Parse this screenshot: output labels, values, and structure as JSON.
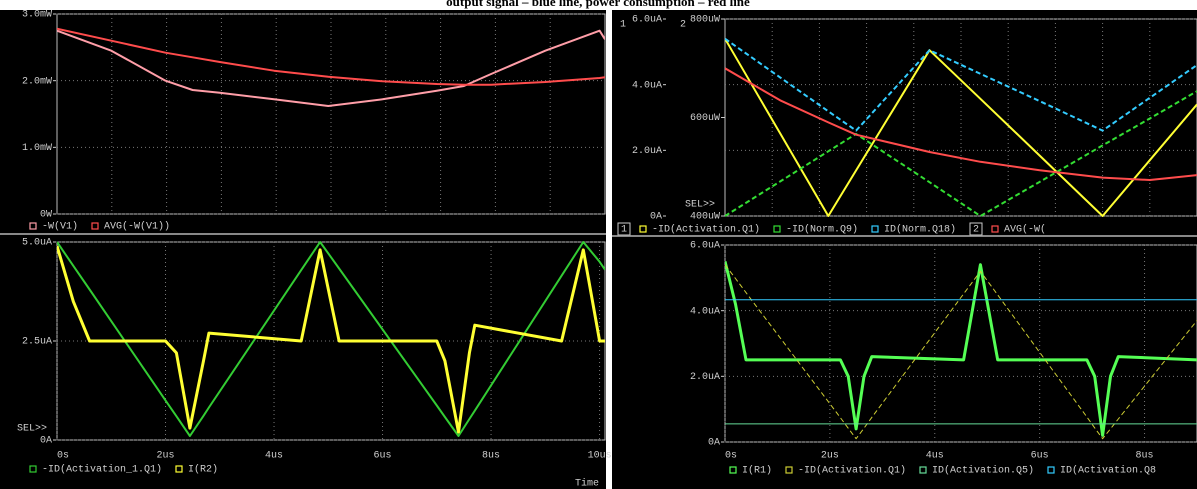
{
  "title": "output signal – blue line, power consumption – red line",
  "chart_data": [
    {
      "type": "line",
      "x": [
        0,
        1,
        2,
        2.5,
        3,
        4,
        5,
        6,
        7,
        7.5,
        8,
        9,
        10,
        10.1
      ],
      "xlim": [
        0,
        10.1
      ],
      "ylim": [
        0,
        3
      ],
      "yticks": [
        {
          "value": 0,
          "label": "0W"
        },
        {
          "value": 1,
          "label": "1.0mW"
        },
        {
          "value": 2,
          "label": "2.0mW"
        },
        {
          "value": 3,
          "label": "3.0mW"
        }
      ],
      "grid": true,
      "series": [
        {
          "name": "-W(V1)",
          "color": "#ff9ea8",
          "values": [
            2.75,
            2.45,
            2.0,
            1.86,
            1.82,
            1.72,
            1.62,
            1.72,
            1.85,
            1.92,
            2.1,
            2.45,
            2.75,
            2.62
          ]
        },
        {
          "name": "AVG(-W(V1))",
          "color": "#ff4c4c",
          "values": [
            2.78,
            2.6,
            2.42,
            2.35,
            2.28,
            2.15,
            2.06,
            1.99,
            1.95,
            1.94,
            1.94,
            1.98,
            2.04,
            2.05
          ]
        }
      ]
    },
    {
      "type": "line",
      "x": [
        0,
        0.3,
        0.6,
        2,
        2.2,
        2.45,
        2.7,
        2.8,
        4.5,
        4.85,
        5.2,
        7.0,
        7.15,
        7.4,
        7.6,
        7.7,
        9.3,
        9.7,
        10.0,
        10.1
      ],
      "xlim": [
        0,
        10.1
      ],
      "xticks": [
        {
          "value": 0,
          "label": "0s"
        },
        {
          "value": 2,
          "label": "2us"
        },
        {
          "value": 4,
          "label": "4us"
        },
        {
          "value": 6,
          "label": "6us"
        },
        {
          "value": 8,
          "label": "8us"
        },
        {
          "value": 10,
          "label": "10us"
        }
      ],
      "xlabel": "Time",
      "sel_label": "SEL>>",
      "ylim": [
        0,
        5
      ],
      "yticks": [
        {
          "value": 0,
          "label": "0A"
        },
        {
          "value": 2.5,
          "label": "2.5uA"
        },
        {
          "value": 5,
          "label": "5.0uA"
        }
      ],
      "grid": true,
      "series": [
        {
          "name": "-ID(Activation_1.Q1)",
          "color": "#33cc33",
          "values": [
            5,
            4.4,
            3.8,
            1.0,
            0.6,
            0.1,
            0.61,
            0.82,
            4.29,
            5,
            4.33,
            0.87,
            0.58,
            0.1,
            0.53,
            0.74,
            4.15,
            5,
            4.5,
            4.3
          ]
        },
        {
          "name": "I(R2)",
          "color": "#ffff33",
          "width": 3,
          "values": [
            4.9,
            3.5,
            2.5,
            2.5,
            2.2,
            0.3,
            2.0,
            2.7,
            2.5,
            4.8,
            2.5,
            2.5,
            2.0,
            0.2,
            2.2,
            2.9,
            2.5,
            4.8,
            2.5,
            2.5
          ]
        }
      ]
    },
    {
      "type": "line",
      "x": [
        0,
        1.05,
        1.97,
        2.5,
        3.9,
        4.87,
        6,
        7.2,
        8.1,
        9
      ],
      "xlim": [
        0,
        9
      ],
      "sel_label": "SEL>>",
      "axis_labels": {
        "y": "1",
        "y2": "2"
      },
      "ylim": [
        0,
        6
      ],
      "yticks": [
        {
          "value": 0,
          "label": "0A"
        },
        {
          "value": 2,
          "label": "2.0uA"
        },
        {
          "value": 4,
          "label": "4.0uA"
        },
        {
          "value": 6,
          "label": "6.0uA"
        }
      ],
      "y2lim": [
        400,
        800
      ],
      "y2ticks": [
        {
          "value": 400,
          "label": "400uW"
        },
        {
          "value": 600,
          "label": "600uW"
        },
        {
          "value": 800,
          "label": "800uW"
        }
      ],
      "grid": true,
      "series": [
        {
          "name": "-ID(Activation.Q1)",
          "color": "#ffff33",
          "width": 2,
          "values": [
            5.4,
            2.52,
            0,
            1.39,
            5.05,
            3.57,
            1.84,
            0,
            1.7,
            3.4
          ]
        },
        {
          "name": "-ID(Norm.Q9)",
          "color": "#33dd33",
          "width": 2,
          "style": "dashed",
          "values": [
            0,
            1.05,
            1.97,
            2.5,
            1.03,
            0,
            1.04,
            2.15,
            2.97,
            3.8
          ]
        },
        {
          "name": "ID(Norm.Q18)",
          "color": "#33ccff",
          "width": 2,
          "style": "dashed",
          "values": [
            5.4,
            4.22,
            3.19,
            2.6,
            5.05,
            4.33,
            3.5,
            2.6,
            3.6,
            4.6
          ]
        },
        {
          "name": "AVG(-W(",
          "color": "#ff4c4c",
          "width": 2,
          "axis": "y2",
          "values": [
            700,
            635,
            590,
            565,
            530,
            510,
            493,
            478,
            473,
            483
          ]
        }
      ]
    },
    {
      "type": "line",
      "x": [
        0,
        0.2,
        0.4,
        2.2,
        2.35,
        2.5,
        2.65,
        2.8,
        4.55,
        4.87,
        5.2,
        6.9,
        7.05,
        7.2,
        7.35,
        7.5,
        9
      ],
      "xlim": [
        0,
        9
      ],
      "xticks": [
        {
          "value": 0,
          "label": "0s"
        },
        {
          "value": 2,
          "label": "2us"
        },
        {
          "value": 4,
          "label": "4us"
        },
        {
          "value": 6,
          "label": "6us"
        },
        {
          "value": 8,
          "label": "8us"
        }
      ],
      "ylim": [
        0,
        6
      ],
      "yticks": [
        {
          "value": 0,
          "label": "0A"
        },
        {
          "value": 2,
          "label": "2.0uA"
        },
        {
          "value": 4,
          "label": "4.0uA"
        },
        {
          "value": 6,
          "label": "6.0uA"
        }
      ],
      "grid": true,
      "series": [
        {
          "name": "I(R1)",
          "color": "#55ff55",
          "width": 3,
          "values": [
            5.5,
            4.2,
            2.5,
            2.5,
            2.0,
            0.4,
            2.0,
            2.6,
            2.5,
            5.4,
            2.5,
            2.5,
            2.0,
            0.2,
            2.0,
            2.6,
            2.5
          ]
        },
        {
          "name": "-ID(Activation.Q1)",
          "color": "#cccc33",
          "width": 1,
          "style": "dashed",
          "values": [
            5.4,
            4.98,
            4.55,
            0.74,
            0.42,
            0.1,
            0.42,
            0.75,
            4.51,
            5.2,
            4.48,
            0.76,
            0.43,
            0.1,
            0.4,
            0.7,
            3.7
          ]
        },
        {
          "name": "ID(Activation.Q5)",
          "color": "#66dd99",
          "width": 1,
          "values": [
            0.55,
            0.55,
            0.55,
            0.55,
            0.55,
            0.55,
            0.55,
            0.55,
            0.55,
            0.55,
            0.55,
            0.55,
            0.55,
            0.55,
            0.55,
            0.55,
            0.55
          ]
        },
        {
          "name": "ID(Activation.Q8",
          "color": "#33ccff",
          "width": 1,
          "values": [
            4.33,
            4.33,
            4.33,
            4.33,
            4.33,
            4.33,
            4.33,
            4.33,
            4.33,
            4.33,
            4.33,
            4.33,
            4.33,
            4.33,
            4.33,
            4.33,
            4.33
          ]
        }
      ]
    }
  ]
}
